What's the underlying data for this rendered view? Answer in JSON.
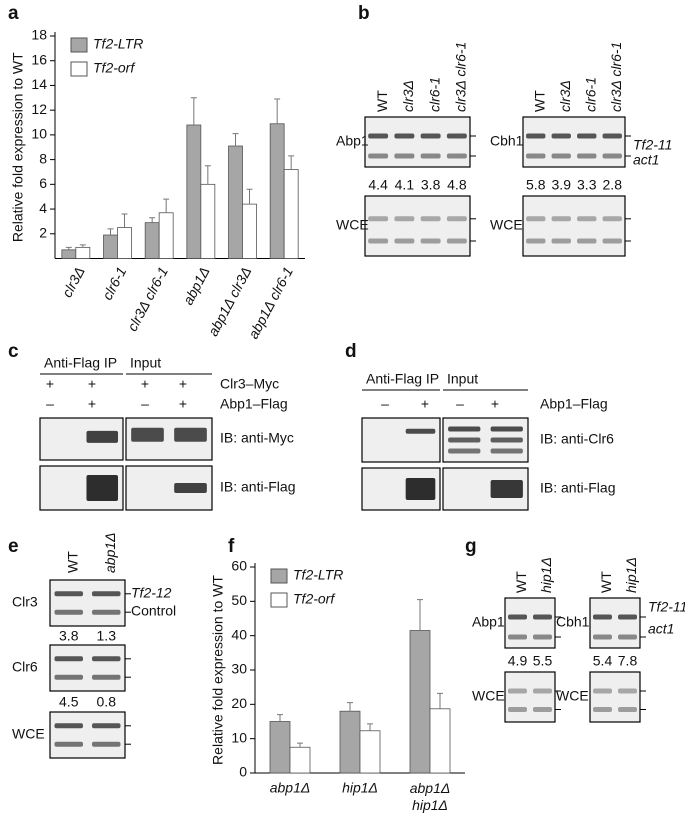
{
  "panel_labels": [
    "a",
    "b",
    "c",
    "d",
    "e",
    "f",
    "g"
  ],
  "chart_data": [
    {
      "type": "bar",
      "y_label": "Relative fold expression to WT",
      "categories": [
        "clr3Δ",
        "clr6-1",
        "clr3Δ clr6-1",
        "abp1Δ",
        "abp1Δ clr3Δ",
        "abp1Δ clr6-1"
      ],
      "series": [
        {
          "name": "Tf2-LTR",
          "color": "#a6a6a6",
          "values": [
            0.7,
            1.9,
            2.9,
            10.8,
            9.1,
            10.9
          ],
          "errors": [
            0.2,
            0.5,
            0.4,
            2.2,
            1.0,
            2.0
          ]
        },
        {
          "name": "Tf2-orf",
          "color": "#ffffff",
          "values": [
            0.9,
            2.5,
            3.7,
            6.0,
            4.4,
            7.2
          ],
          "errors": [
            0.2,
            1.1,
            1.1,
            1.5,
            1.2,
            1.1
          ]
        }
      ],
      "ylim": [
        0,
        18
      ],
      "yticks": [
        2,
        4,
        6,
        8,
        10,
        12,
        14,
        16,
        18
      ],
      "legend": "upper left"
    },
    {
      "type": "bar",
      "y_label": "Relative fold expression to WT",
      "categories": [
        "abp1Δ",
        "hip1Δ",
        "abp1Δ hip1Δ"
      ],
      "series": [
        {
          "name": "Tf2-LTR",
          "color": "#a6a6a6",
          "values": [
            15,
            18,
            41.5
          ],
          "errors": [
            2,
            2.5,
            9
          ]
        },
        {
          "name": "Tf2-orf",
          "color": "#ffffff",
          "values": [
            7.5,
            12.3,
            18.7
          ],
          "errors": [
            1.2,
            2,
            4.5
          ]
        }
      ],
      "ylim": [
        0,
        60
      ],
      "yticks": [
        0,
        10,
        20,
        30,
        40,
        50,
        60
      ],
      "legend": "upper left"
    }
  ],
  "panel_b": {
    "left": {
      "lanes": [
        "WT",
        "clr3Δ",
        "clr6-1",
        "clr3Δ clr6-1"
      ],
      "blot": "Abp1",
      "ratios": [
        4.4,
        4.1,
        3.8,
        4.8
      ],
      "control": "WCE"
    },
    "right": {
      "lanes": [
        "WT",
        "clr3Δ",
        "clr6-1",
        "clr3Δ clr6-1"
      ],
      "blot": "Cbh1",
      "ratios": [
        5.8,
        3.9,
        3.3,
        2.8
      ],
      "control": "WCE"
    },
    "bands": [
      "Tf2-11",
      "act1"
    ]
  },
  "panel_c": {
    "groups": [
      "Anti-Flag IP",
      "Input"
    ],
    "rows": [
      {
        "label": "Clr3–Myc",
        "signs": [
          "+",
          "+",
          "+",
          "+"
        ]
      },
      {
        "label": "Abp1–Flag",
        "signs": [
          "–",
          "+",
          "–",
          "+"
        ]
      }
    ],
    "blots": [
      "IB: anti-Myc",
      "IB: anti-Flag"
    ]
  },
  "panel_d": {
    "groups": [
      "Anti-Flag IP",
      "Input"
    ],
    "rows": [
      {
        "label": "Abp1–Flag",
        "signs": [
          "–",
          "+",
          "–",
          "+"
        ]
      }
    ],
    "blots": [
      "IB: anti-Clr6",
      "IB: anti-Flag"
    ]
  },
  "panel_e": {
    "lanes": [
      "WT",
      "abp1Δ"
    ],
    "blots": [
      {
        "label": "Clr3",
        "ratios": [
          3.8,
          1.3
        ]
      },
      {
        "label": "Clr6",
        "ratios": [
          4.5,
          0.8
        ]
      },
      {
        "label": "WCE"
      }
    ],
    "bands": [
      "Tf2-12",
      "Control"
    ]
  },
  "panel_g": {
    "left": {
      "lanes": [
        "WT",
        "hip1Δ"
      ],
      "blot": "Abp1",
      "ratios": [
        4.9,
        5.5
      ],
      "control": "WCE"
    },
    "right": {
      "lanes": [
        "WT",
        "hip1Δ"
      ],
      "blot": "Cbh1",
      "ratios": [
        5.4,
        7.8
      ],
      "control": "WCE"
    },
    "bands": [
      "Tf2-11",
      "act1"
    ]
  }
}
